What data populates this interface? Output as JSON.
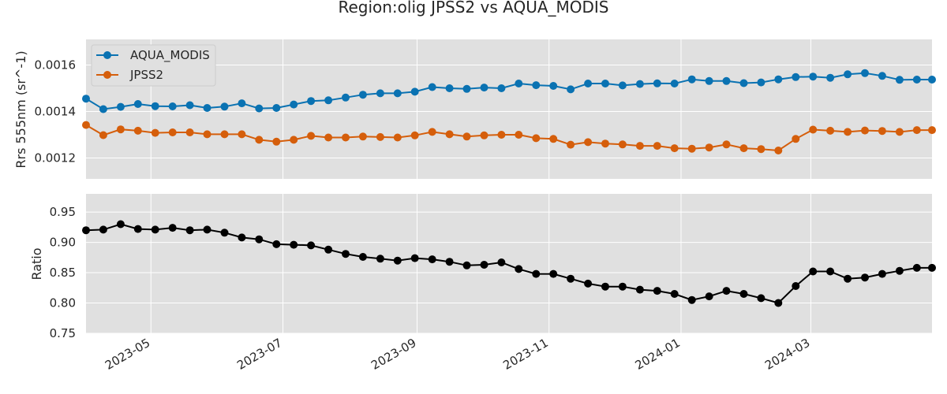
{
  "figure_title": "Region:olig JPSS2 vs AQUA_MODIS",
  "colors": {
    "background": "#ffffff",
    "axes_bg": "#e0e0e0",
    "grid": "#ffffff",
    "aqua": "#0a72b2",
    "jpss2": "#d55e0b",
    "ratio": "#000000"
  },
  "chart_data": [
    {
      "type": "line",
      "ylabel": "Rrs 555nm (sr^-1)",
      "xlim": [
        "2023-04-01",
        "2024-04-26"
      ],
      "ylim": [
        0.00111,
        0.00171
      ],
      "yticks": [
        0.0012,
        0.0014,
        0.0016
      ],
      "ytick_labels": [
        "0.0012",
        "0.0014",
        "0.0016"
      ],
      "grid": true,
      "legend_position": "upper-left",
      "x": [
        "2023-04-01",
        "2023-04-09",
        "2023-04-17",
        "2023-04-25",
        "2023-05-03",
        "2023-05-11",
        "2023-05-19",
        "2023-05-27",
        "2023-06-04",
        "2023-06-12",
        "2023-06-20",
        "2023-06-28",
        "2023-07-06",
        "2023-07-14",
        "2023-07-22",
        "2023-07-30",
        "2023-08-07",
        "2023-08-15",
        "2023-08-23",
        "2023-08-31",
        "2023-09-08",
        "2023-09-16",
        "2023-09-24",
        "2023-10-02",
        "2023-10-10",
        "2023-10-18",
        "2023-10-26",
        "2023-11-03",
        "2023-11-11",
        "2023-11-19",
        "2023-11-27",
        "2023-12-05",
        "2023-12-13",
        "2023-12-21",
        "2023-12-29",
        "2024-01-06",
        "2024-01-14",
        "2024-01-22",
        "2024-01-30",
        "2024-02-07",
        "2024-02-15",
        "2024-02-23",
        "2024-03-02",
        "2024-03-10",
        "2024-03-18",
        "2024-03-26",
        "2024-04-03",
        "2024-04-11",
        "2024-04-19",
        "2024-04-26"
      ],
      "series": [
        {
          "name": "AQUA_MODIS",
          "color": "#0a72b2",
          "values": [
            0.001455,
            0.00141,
            0.00142,
            0.001432,
            0.001423,
            0.001422,
            0.001427,
            0.001415,
            0.001421,
            0.001435,
            0.001413,
            0.001415,
            0.00143,
            0.001445,
            0.001448,
            0.00146,
            0.001472,
            0.001478,
            0.001478,
            0.001485,
            0.001505,
            0.0015,
            0.001497,
            0.001503,
            0.0015,
            0.00152,
            0.001513,
            0.00151,
            0.001495,
            0.00152,
            0.00152,
            0.001512,
            0.001518,
            0.001521,
            0.00152,
            0.001538,
            0.001531,
            0.001531,
            0.001522,
            0.001525,
            0.001538,
            0.001548,
            0.00155,
            0.001545,
            0.00156,
            0.001565,
            0.001553,
            0.001536,
            0.001537,
            0.001537
          ]
        },
        {
          "name": "JPSS2",
          "color": "#d55e0b",
          "values": [
            0.001342,
            0.001298,
            0.001323,
            0.001317,
            0.001308,
            0.00131,
            0.00131,
            0.001302,
            0.001302,
            0.001302,
            0.001278,
            0.00127,
            0.001278,
            0.001295,
            0.001288,
            0.001288,
            0.001292,
            0.00129,
            0.001288,
            0.001297,
            0.001312,
            0.001302,
            0.001292,
            0.001297,
            0.0013,
            0.0013,
            0.001285,
            0.001282,
            0.001257,
            0.001268,
            0.001262,
            0.001258,
            0.001252,
            0.001252,
            0.001242,
            0.00124,
            0.001245,
            0.001258,
            0.001242,
            0.001238,
            0.001232,
            0.001282,
            0.001322,
            0.001317,
            0.001312,
            0.001318,
            0.001316,
            0.001312,
            0.00132,
            0.00132
          ]
        }
      ]
    },
    {
      "type": "line",
      "ylabel": "Ratio",
      "xlim": [
        "2023-04-01",
        "2024-04-26"
      ],
      "ylim": [
        0.75,
        0.98
      ],
      "yticks": [
        0.75,
        0.8,
        0.85,
        0.9,
        0.95
      ],
      "ytick_labels": [
        "0.75",
        "0.80",
        "0.85",
        "0.90",
        "0.95"
      ],
      "xticks": [
        "2023-05-01",
        "2023-07-01",
        "2023-09-01",
        "2023-11-01",
        "2024-01-01",
        "2024-03-01"
      ],
      "xtick_labels": [
        "2023-05",
        "2023-07",
        "2023-09",
        "2023-11",
        "2024-01",
        "2024-03"
      ],
      "grid": true,
      "series": [
        {
          "color": "#000000",
          "values": [
            0.92,
            0.921,
            0.93,
            0.922,
            0.921,
            0.924,
            0.92,
            0.921,
            0.916,
            0.908,
            0.905,
            0.897,
            0.896,
            0.895,
            0.888,
            0.881,
            0.876,
            0.873,
            0.87,
            0.874,
            0.872,
            0.868,
            0.862,
            0.863,
            0.867,
            0.856,
            0.848,
            0.848,
            0.84,
            0.832,
            0.827,
            0.827,
            0.822,
            0.82,
            0.815,
            0.805,
            0.811,
            0.82,
            0.815,
            0.808,
            0.8,
            0.828,
            0.852,
            0.852,
            0.84,
            0.842,
            0.848,
            0.853,
            0.858,
            0.858
          ]
        }
      ]
    }
  ]
}
